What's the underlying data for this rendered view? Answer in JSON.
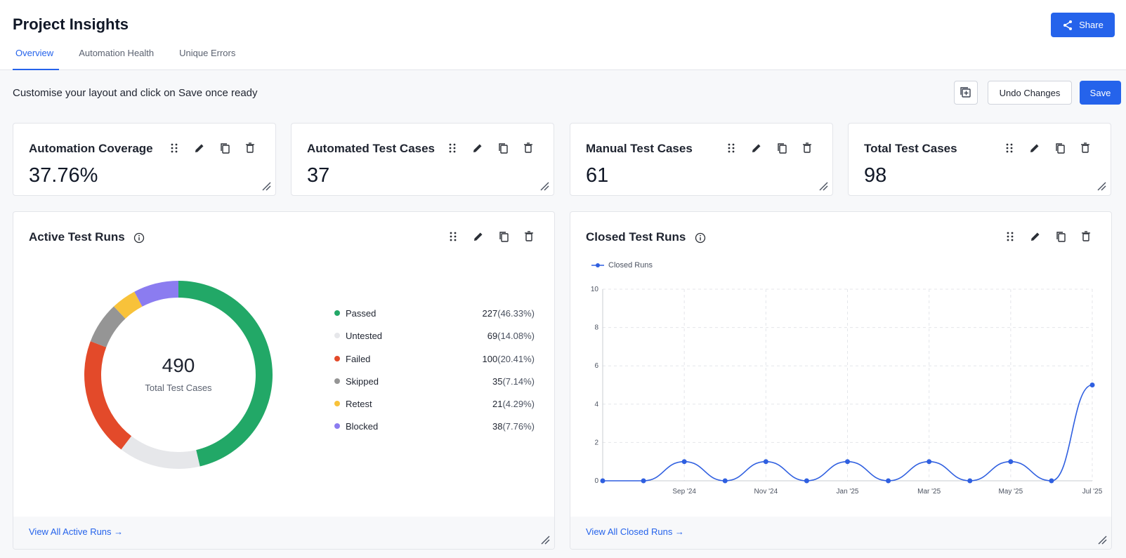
{
  "header": {
    "title": "Project Insights",
    "share_label": "Share",
    "tabs": [
      {
        "label": "Overview",
        "active": true
      },
      {
        "label": "Automation Health",
        "active": false
      },
      {
        "label": "Unique Errors",
        "active": false
      }
    ]
  },
  "toolbar": {
    "message": "Customise your layout and click on Save once ready",
    "undo_label": "Undo Changes",
    "save_label": "Save",
    "add_widget_icon": "add-widget-icon"
  },
  "stats": [
    {
      "title": "Automation Coverage",
      "value": "37.76%"
    },
    {
      "title": "Automated Test Cases",
      "value": "37"
    },
    {
      "title": "Manual Test Cases",
      "value": "61"
    },
    {
      "title": "Total Test Cases",
      "value": "98"
    }
  ],
  "active_runs": {
    "title": "Active Test Runs",
    "total": "490",
    "total_label": "Total Test Cases",
    "footer_link": "View All Active Runs →",
    "legend": [
      {
        "label": "Passed",
        "count": "227",
        "pct": "(46.33%)",
        "color": "#22a867"
      },
      {
        "label": "Untested",
        "count": "69",
        "pct": "(14.08%)",
        "color": "#e6e7ea"
      },
      {
        "label": "Failed",
        "count": "100",
        "pct": "(20.41%)",
        "color": "#e34a2a"
      },
      {
        "label": "Skipped",
        "count": "35",
        "pct": "(7.14%)",
        "color": "#959595"
      },
      {
        "label": "Retest",
        "count": "21",
        "pct": "(4.29%)",
        "color": "#f8c23a"
      },
      {
        "label": "Blocked",
        "count": "38",
        "pct": "(7.76%)",
        "color": "#8b7cf0"
      }
    ]
  },
  "closed_runs": {
    "title": "Closed Test Runs",
    "footer_link": "View All Closed Runs →"
  },
  "chart_data": [
    {
      "type": "pie",
      "title": "Active Test Runs",
      "categories": [
        "Passed",
        "Untested",
        "Failed",
        "Skipped",
        "Retest",
        "Blocked"
      ],
      "values": [
        227,
        69,
        100,
        35,
        21,
        38
      ],
      "colors": [
        "#22a867",
        "#e6e7ea",
        "#e34a2a",
        "#959595",
        "#f8c23a",
        "#8b7cf0"
      ],
      "donut": true,
      "center_text": "490"
    },
    {
      "type": "line",
      "title": "Closed Test Runs",
      "series": [
        {
          "name": "Closed Runs",
          "color": "#2f5fe0",
          "x": [
            "Jul '24",
            "Aug '24",
            "Sep '24",
            "Oct '24",
            "Nov '24",
            "Dec '24",
            "Jan '25",
            "Feb '25",
            "Mar '25",
            "Apr '25",
            "May '25",
            "Jun '25",
            "Jul '25"
          ],
          "values": [
            0,
            0,
            1,
            0,
            1,
            0,
            1,
            0,
            1,
            0,
            1,
            0,
            5
          ]
        }
      ],
      "x_tick_labels": [
        "Sep '24",
        "Nov '24",
        "Jan '25",
        "Mar '25",
        "May '25",
        "Jul '25"
      ],
      "y_ticks": [
        0,
        2,
        4,
        6,
        8,
        10
      ],
      "ylim": [
        0,
        10
      ],
      "grid": true,
      "legend_position": "top-left",
      "smooth": true
    }
  ]
}
